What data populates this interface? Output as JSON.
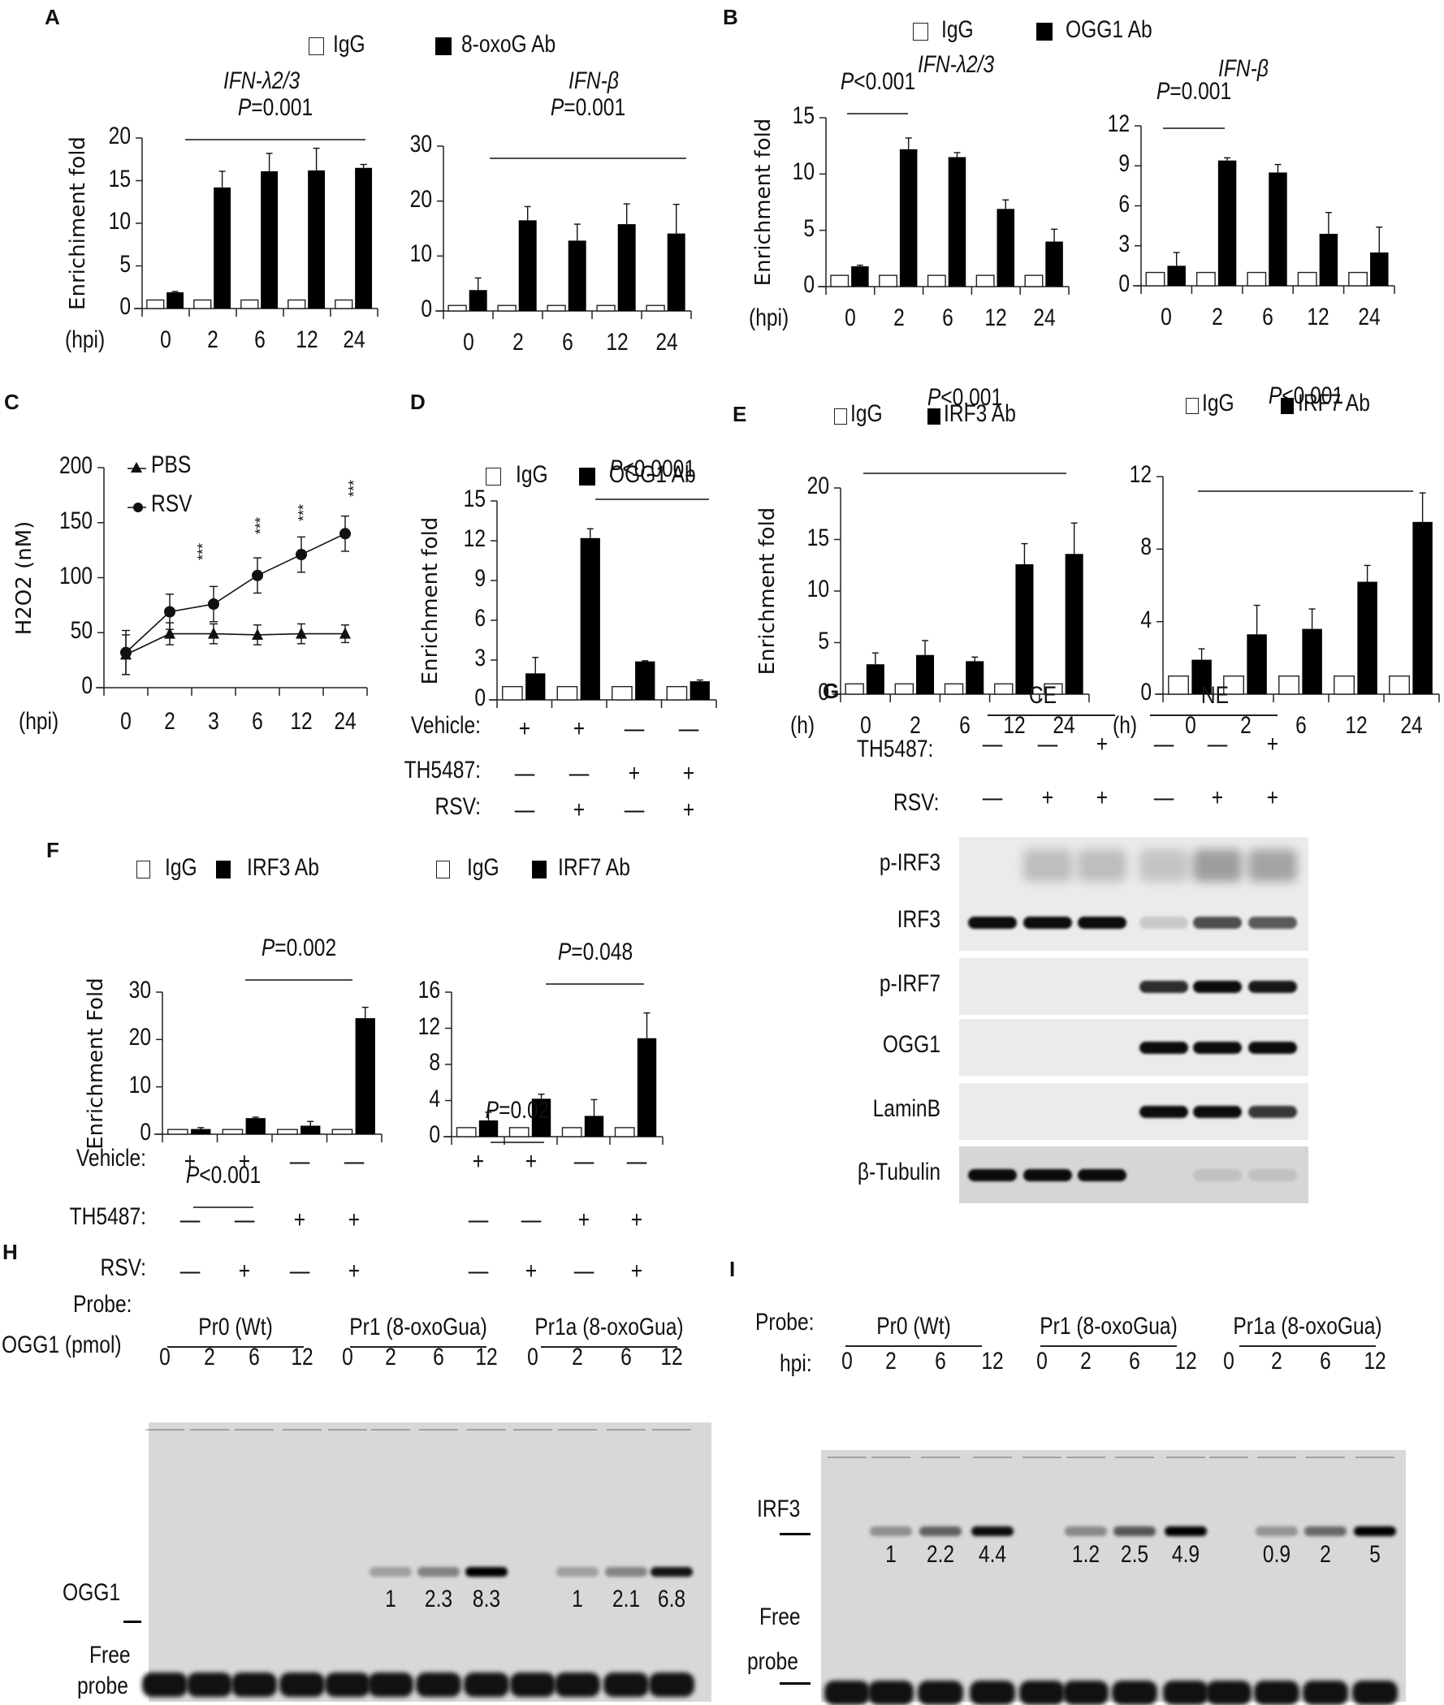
{
  "panels": {
    "A": {
      "label": "A",
      "legend": {
        "open": "IgG",
        "filled": "8-oxoG Ab"
      }
    },
    "B": {
      "label": "B",
      "legend": {
        "open": "IgG",
        "filled": "OGG1 Ab"
      }
    },
    "C": {
      "label": "C"
    },
    "D": {
      "label": "D",
      "legend": {
        "open": "IgG",
        "filled": "OGG1 Ab"
      }
    },
    "E": {
      "label": "E",
      "legend_left": {
        "open": "IgG",
        "filled": "IRF3 Ab"
      },
      "legend_right": {
        "open": "IgG",
        "filled": "IRF7 Ab"
      }
    },
    "F": {
      "label": "F",
      "legend_left": {
        "open": "IgG",
        "filled": "IRF3 Ab"
      },
      "legend_right": {
        "open": "IgG",
        "filled": "IRF7 Ab"
      }
    },
    "G": {
      "label": "G",
      "groups": [
        "CE",
        "NE"
      ],
      "row_labels": {
        "th5487": "TH5487:",
        "rsv": "RSV:"
      },
      "th5487": [
        "—",
        "—",
        "+",
        "—",
        "—",
        "+"
      ],
      "rsv": [
        "—",
        "+",
        "+",
        "—",
        "+",
        "+"
      ],
      "blots": [
        "p-IRF3",
        "IRF3",
        "p-IRF7",
        "OGG1",
        "LaminB",
        "β-Tubulin"
      ]
    },
    "H": {
      "label": "H",
      "probe_label": "Probe:",
      "probes": [
        "Pr0 (Wt)",
        "Pr1 (8-oxoGua)",
        "Pr1a (8-oxoGua)"
      ],
      "dose_label": "OGG1 (pmol)",
      "doses": [
        "0",
        "2",
        "6",
        "12",
        "0",
        "2",
        "6",
        "12",
        "0",
        "2",
        "6",
        "12"
      ],
      "band_label": "OGG1",
      "free_probe_label_1": "Free",
      "free_probe_label_2": "probe",
      "quant": [
        "",
        "",
        "",
        "",
        "",
        "1",
        "2.3",
        "8.3",
        "",
        "1",
        "2.1",
        "6.8"
      ]
    },
    "I": {
      "label": "I",
      "probe_label": "Probe:",
      "probes": [
        "Pr0 (Wt)",
        "Pr1 (8-oxoGua)",
        "Pr1a (8-oxoGua)"
      ],
      "time_label": "hpi:",
      "times": [
        "0",
        "2",
        "6",
        "12",
        "0",
        "2",
        "6",
        "12",
        "0",
        "2",
        "6",
        "12"
      ],
      "band_label": "IRF3",
      "free_probe_label_1": "Free",
      "free_probe_label_2": "probe",
      "quant": [
        "",
        "1",
        "2.2",
        "4.4",
        "",
        "1.2",
        "2.5",
        "4.9",
        "",
        "0.9",
        "2",
        "5"
      ]
    }
  },
  "chart_data": [
    {
      "id": "A-left",
      "type": "bar",
      "title": "IFN-λ2/3",
      "ylabel": "Enrichiment fold",
      "xlabel": "(hpi)",
      "categories": [
        "0",
        "2",
        "6",
        "12",
        "24"
      ],
      "ylim": [
        0,
        20
      ],
      "yticks": [
        0,
        5,
        10,
        15,
        20
      ],
      "series": [
        {
          "name": "IgG",
          "values": [
            1,
            1,
            1,
            1,
            1
          ]
        },
        {
          "name": "8-oxoG Ab",
          "values": [
            1.9,
            14.2,
            16.1,
            16.2,
            16.5
          ],
          "errors": [
            0.1,
            1.9,
            2.1,
            2.6,
            0.4
          ]
        }
      ],
      "annotations": [
        "P=0.001"
      ]
    },
    {
      "id": "A-right",
      "type": "bar",
      "title": "IFN-β",
      "ylabel": "",
      "xlabel": "",
      "categories": [
        "0",
        "2",
        "6",
        "12",
        "24"
      ],
      "ylim": [
        0,
        30
      ],
      "yticks": [
        0,
        10,
        20,
        30
      ],
      "series": [
        {
          "name": "IgG",
          "values": [
            1,
            1,
            1,
            1,
            1
          ]
        },
        {
          "name": "8-oxoG Ab",
          "values": [
            3.8,
            16.5,
            12.8,
            15.8,
            14.1
          ],
          "errors": [
            2.2,
            2.5,
            3.0,
            3.7,
            5.3
          ]
        }
      ],
      "annotations": [
        "P=0.001"
      ]
    },
    {
      "id": "B-left",
      "type": "bar",
      "title": "IFN-λ2/3",
      "ylabel": "Enrichment fold",
      "xlabel": "(hpi)",
      "categories": [
        "0",
        "2",
        "6",
        "12",
        "24"
      ],
      "ylim": [
        0,
        15
      ],
      "yticks": [
        0,
        5,
        10,
        15
      ],
      "series": [
        {
          "name": "IgG",
          "values": [
            1,
            1,
            1,
            1,
            1
          ]
        },
        {
          "name": "OGG1 Ab",
          "values": [
            1.8,
            12.2,
            11.5,
            6.9,
            4.0
          ],
          "errors": [
            0.1,
            1.0,
            0.4,
            0.8,
            1.1
          ]
        }
      ],
      "annotations": [
        "P<0.001"
      ]
    },
    {
      "id": "B-right",
      "type": "bar",
      "title": "IFN-β",
      "ylabel": "",
      "xlabel": "",
      "categories": [
        "0",
        "2",
        "6",
        "12",
        "24"
      ],
      "ylim": [
        0,
        12
      ],
      "yticks": [
        0,
        3,
        6,
        9,
        12
      ],
      "series": [
        {
          "name": "IgG",
          "values": [
            1,
            1,
            1,
            1,
            1
          ]
        },
        {
          "name": "OGG1 Ab",
          "values": [
            1.5,
            9.4,
            8.5,
            3.9,
            2.5
          ],
          "errors": [
            1.0,
            0.2,
            0.6,
            1.6,
            1.9
          ]
        }
      ],
      "annotations": [
        "P=0.001"
      ]
    },
    {
      "id": "C",
      "type": "line",
      "title": "",
      "ylabel": "H2O2 (nM)",
      "xlabel": "(hpi)",
      "x": [
        "0",
        "2",
        "3",
        "6",
        "12",
        "24"
      ],
      "ylim": [
        0,
        200
      ],
      "yticks": [
        0,
        50,
        100,
        150,
        200
      ],
      "series": [
        {
          "name": "PBS",
          "marker": "triangle",
          "values": [
            30,
            49,
            49,
            48,
            49,
            49
          ],
          "errors": [
            18,
            10,
            9,
            9,
            9,
            8
          ]
        },
        {
          "name": "RSV",
          "marker": "circle",
          "values": [
            32,
            69,
            76,
            102,
            121,
            140
          ],
          "errors": [
            20,
            16,
            16,
            16,
            16,
            16
          ]
        }
      ],
      "annotations": [
        "***",
        "***",
        "***",
        "***"
      ]
    },
    {
      "id": "D",
      "type": "bar",
      "title": "",
      "ylabel": "Enrichment fold",
      "xlabel": "",
      "categories": [
        "Veh+/TH−/RSV−",
        "Veh+/TH−/RSV+",
        "Veh−/TH+/RSV−",
        "Veh−/TH+/RSV+"
      ],
      "ylim": [
        0,
        15
      ],
      "yticks": [
        0,
        3,
        6,
        9,
        12,
        15
      ],
      "series": [
        {
          "name": "IgG",
          "values": [
            1,
            1,
            1,
            1
          ]
        },
        {
          "name": "OGG1 Ab",
          "values": [
            2.0,
            12.2,
            2.9,
            1.4
          ],
          "errors": [
            1.2,
            0.7,
            0.05,
            0.1
          ]
        }
      ],
      "row_labels": [
        "Vehicle:",
        "TH5487:",
        "RSV:"
      ],
      "conditions": {
        "Vehicle": [
          "+",
          "+",
          "—",
          "—"
        ],
        "TH5487": [
          "—",
          "—",
          "+",
          "+"
        ],
        "RSV": [
          "—",
          "+",
          "—",
          "+"
        ]
      },
      "annotations": [
        "P<0.0001"
      ]
    },
    {
      "id": "E-left",
      "type": "bar",
      "title": "",
      "ylabel": "Enrichment fold",
      "xlabel": "(h)",
      "categories": [
        "0",
        "2",
        "6",
        "12",
        "24"
      ],
      "ylim": [
        0,
        20
      ],
      "yticks": [
        0,
        5,
        10,
        15,
        20
      ],
      "series": [
        {
          "name": "IgG",
          "values": [
            1,
            1,
            1,
            1,
            1
          ]
        },
        {
          "name": "IRF3 Ab",
          "values": [
            2.9,
            3.8,
            3.2,
            12.6,
            13.6
          ],
          "errors": [
            1.1,
            1.4,
            0.4,
            2.0,
            3.0
          ]
        }
      ],
      "annotations": [
        "P<0.001",
        "P<0.001"
      ]
    },
    {
      "id": "E-right",
      "type": "bar",
      "title": "",
      "ylabel": "",
      "xlabel": "(h)",
      "categories": [
        "0",
        "2",
        "6",
        "12",
        "24"
      ],
      "ylim": [
        0,
        12
      ],
      "yticks": [
        0,
        4,
        8,
        12
      ],
      "series": [
        {
          "name": "IgG",
          "values": [
            1,
            1,
            1,
            1,
            1
          ]
        },
        {
          "name": "IRF7 Ab",
          "values": [
            1.9,
            3.3,
            3.6,
            6.2,
            9.5
          ],
          "errors": [
            0.6,
            1.6,
            1.1,
            0.9,
            1.6
          ]
        }
      ],
      "annotations": [
        "P<0.001",
        "P<0.001"
      ]
    },
    {
      "id": "F-left",
      "type": "bar",
      "title": "",
      "ylabel": "Enrichment Fold",
      "xlabel": "",
      "categories": [
        "Veh+/TH−/RSV−",
        "Veh+/TH−/RSV+",
        "Veh−/TH+/RSV−",
        "Veh−/TH+/RSV+"
      ],
      "ylim": [
        0,
        30
      ],
      "yticks": [
        0,
        10,
        20,
        30
      ],
      "series": [
        {
          "name": "IgG",
          "values": [
            1,
            1,
            1,
            1
          ]
        },
        {
          "name": "IRF3 Ab",
          "values": [
            1.1,
            3.4,
            1.8,
            24.5
          ],
          "errors": [
            0.3,
            0.2,
            0.9,
            2.3
          ]
        }
      ],
      "row_labels": [
        "Vehicle:",
        "TH5487:",
        "RSV:"
      ],
      "conditions": {
        "Vehicle": [
          "+",
          "+",
          "—",
          "—"
        ],
        "TH5487": [
          "—",
          "—",
          "+",
          "+"
        ],
        "RSV": [
          "—",
          "+",
          "—",
          "+"
        ]
      },
      "annotations": [
        "P=0.002",
        "P<0.001"
      ]
    },
    {
      "id": "F-right",
      "type": "bar",
      "title": "",
      "ylabel": "",
      "xlabel": "",
      "categories": [
        "Veh+/TH−/RSV−",
        "Veh+/TH−/RSV+",
        "Veh−/TH+/RSV−",
        "Veh−/TH+/RSV+"
      ],
      "ylim": [
        0,
        16
      ],
      "yticks": [
        0,
        4,
        8,
        12,
        16
      ],
      "series": [
        {
          "name": "IgG",
          "values": [
            1,
            1,
            1,
            1
          ]
        },
        {
          "name": "IRF7 Ab",
          "values": [
            1.8,
            4.2,
            2.3,
            10.9
          ],
          "errors": [
            0.9,
            0.5,
            1.8,
            2.8
          ]
        }
      ],
      "conditions": {
        "Vehicle": [
          "+",
          "+",
          "—",
          "—"
        ],
        "TH5487": [
          "—",
          "—",
          "+",
          "+"
        ],
        "RSV": [
          "—",
          "+",
          "—",
          "+"
        ]
      },
      "annotations": [
        "P=0.048",
        "P=0.02"
      ]
    }
  ]
}
